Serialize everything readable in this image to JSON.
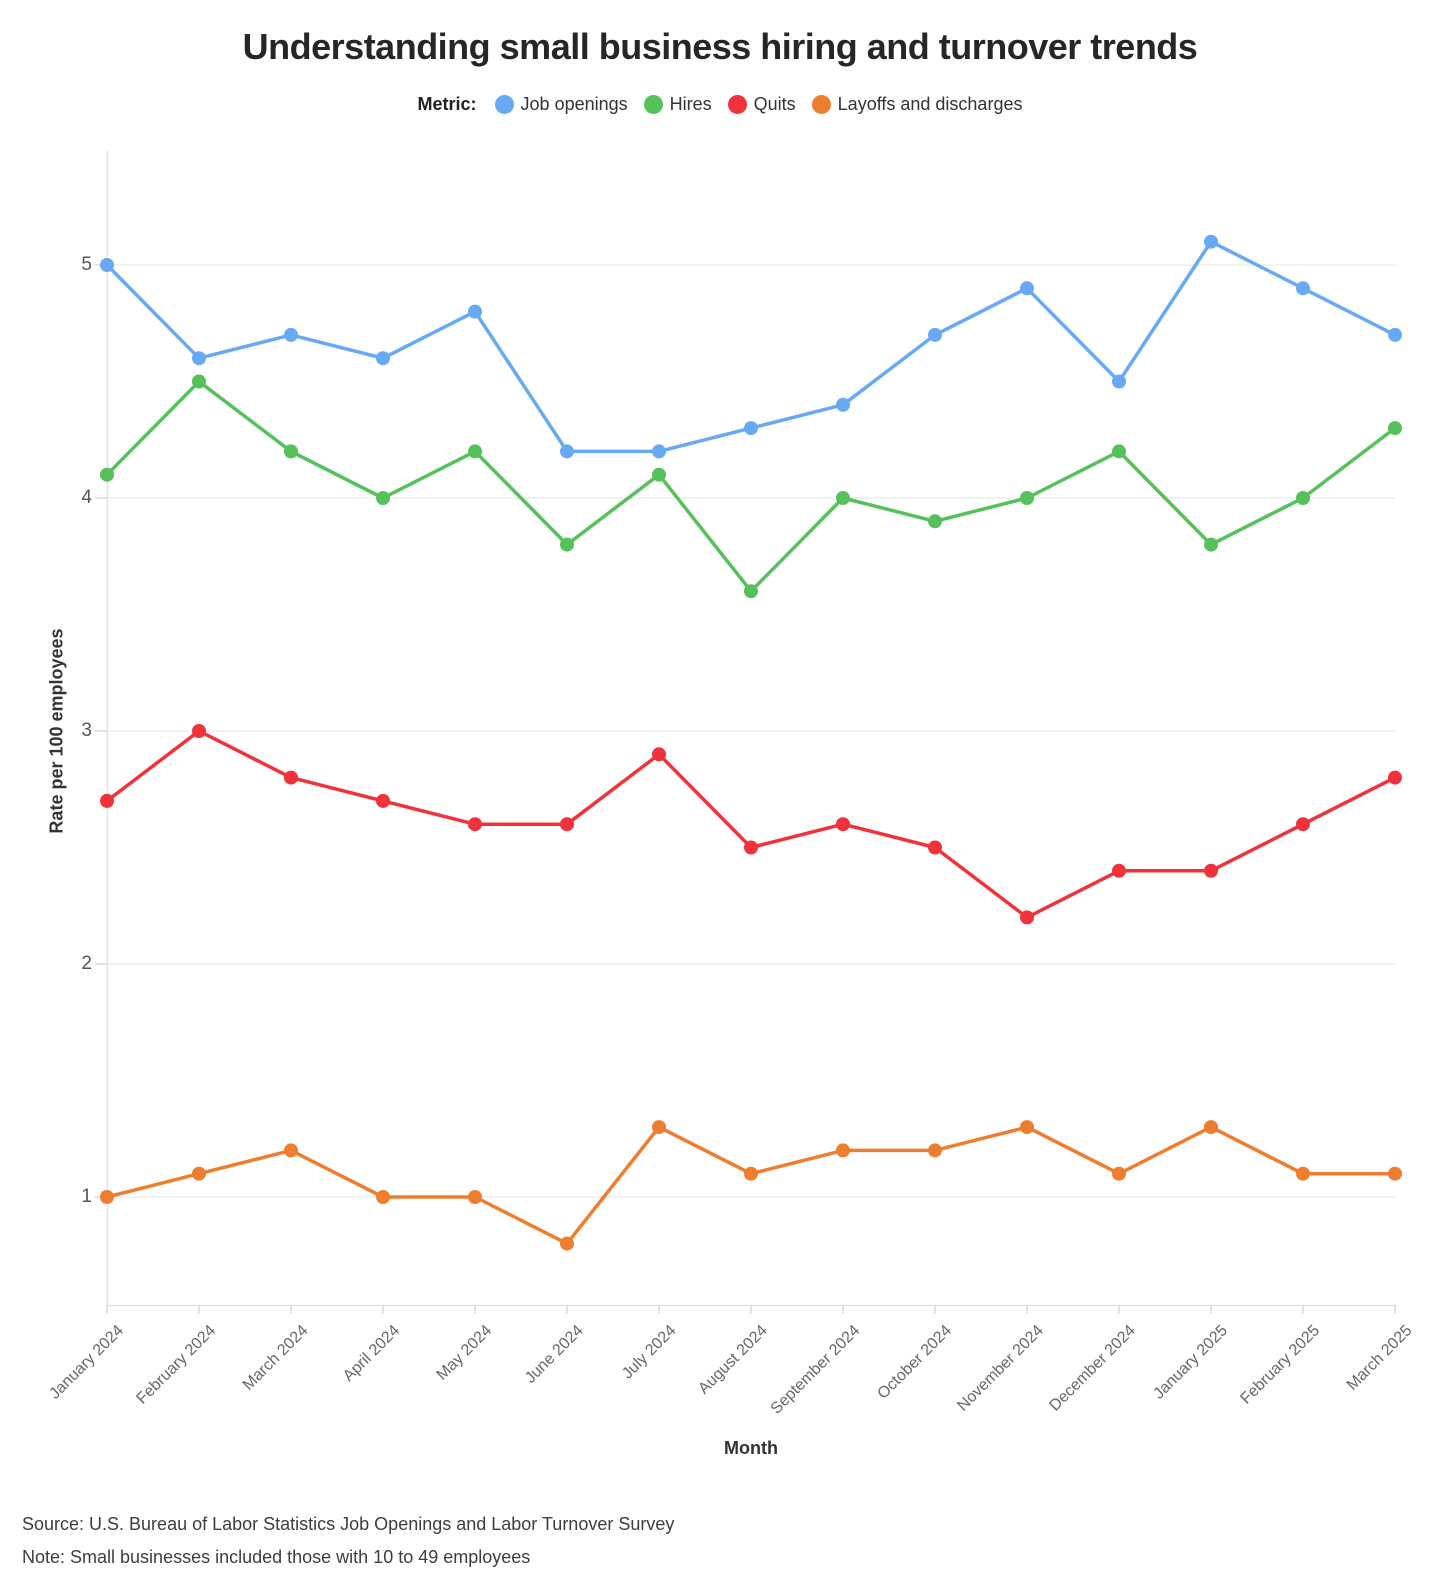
{
  "title": "Understanding small business hiring and turnover trends",
  "legend": {
    "label": "Metric:"
  },
  "chart_data": {
    "type": "line",
    "title": "Understanding small business hiring and turnover trends",
    "xlabel": "Month",
    "ylabel": "Rate per 100 employees",
    "categories": [
      "January 2024",
      "February 2024",
      "March 2024",
      "April 2024",
      "May 2024",
      "June 2024",
      "July 2024",
      "August 2024",
      "September 2024",
      "October 2024",
      "November 2024",
      "December 2024",
      "January 2025",
      "February 2025",
      "March 2025"
    ],
    "series": [
      {
        "name": "Job openings",
        "color": "#68A9F3",
        "values": [
          5.0,
          4.6,
          4.7,
          4.6,
          4.8,
          4.2,
          4.2,
          4.3,
          4.4,
          4.7,
          4.9,
          4.5,
          5.1,
          4.9,
          4.7
        ]
      },
      {
        "name": "Hires",
        "color": "#55C15A",
        "values": [
          4.1,
          4.5,
          4.2,
          4.0,
          4.2,
          3.8,
          4.1,
          3.6,
          4.0,
          3.9,
          4.0,
          4.2,
          3.8,
          4.0,
          4.3
        ]
      },
      {
        "name": "Quits",
        "color": "#F0333A",
        "values": [
          2.7,
          3.0,
          2.8,
          2.7,
          2.6,
          2.6,
          2.9,
          2.5,
          2.6,
          2.5,
          2.2,
          2.4,
          2.4,
          2.6,
          2.8
        ]
      },
      {
        "name": "Layoffs and discharges",
        "color": "#EE7E2F",
        "values": [
          1.0,
          1.1,
          1.2,
          1.0,
          1.0,
          0.8,
          1.3,
          1.1,
          1.2,
          1.2,
          1.3,
          1.1,
          1.3,
          1.1,
          1.1
        ]
      }
    ],
    "yticks": [
      1,
      2,
      3,
      4,
      5
    ],
    "ylim": [
      0.5,
      5.5
    ],
    "grid": true,
    "legend_position": "top"
  },
  "footer": {
    "source": "Source: U.S. Bureau of Labor Statistics Job Openings and Labor Turnover Survey",
    "note": "Note: Small businesses included those with 10 to 49 employees"
  }
}
